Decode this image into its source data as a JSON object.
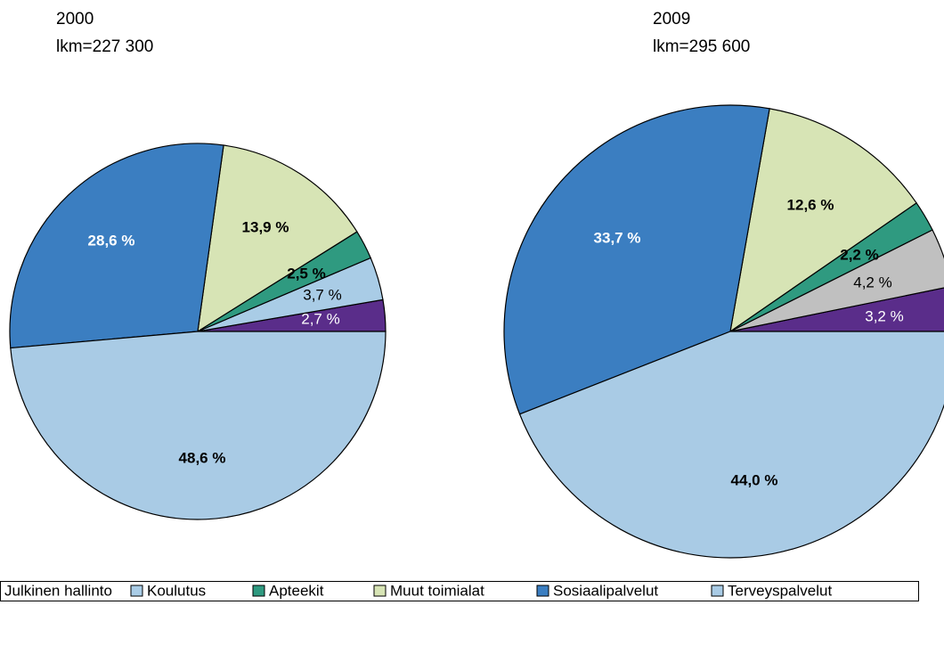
{
  "chart_data": [
    {
      "type": "pie",
      "title": "2000",
      "subtitle": "lkm=227 300",
      "categories": [
        "Julkinen hallinto",
        "Koulutus",
        "Apteekit",
        "Muut toimialat",
        "Sosiaalipalvelut",
        "Terveyspalvelut"
      ],
      "values": [
        2.7,
        3.7,
        2.5,
        13.9,
        28.6,
        48.6
      ],
      "value_labels": [
        "2,7 %",
        "3,7 %",
        "2,5 %",
        "13,9 %",
        "28,6 %",
        "48,6 %"
      ],
      "colors": [
        "#5a2d8a",
        "#a9cce6",
        "#2f9a80",
        "#d7e4b5",
        "#3b7ec1",
        "#a9cbe5"
      ]
    },
    {
      "type": "pie",
      "title": "2009",
      "subtitle": "lkm=295 600",
      "categories": [
        "Julkinen hallinto",
        "Koulutus",
        "Apteekit",
        "Muut toimialat",
        "Sosiaalipalvelut",
        "Terveyspalvelut"
      ],
      "values": [
        3.2,
        4.2,
        2.2,
        12.6,
        33.7,
        44.0
      ],
      "value_labels": [
        "3,2 %",
        "4,2 %",
        "2,2 %",
        "12,6 %",
        "33,7 %",
        "44,0 %"
      ],
      "colors": [
        "#5a2d8a",
        "#c0c0c0",
        "#2f9a80",
        "#d7e4b5",
        "#3b7ec1",
        "#a9cbe5"
      ]
    }
  ]
}
